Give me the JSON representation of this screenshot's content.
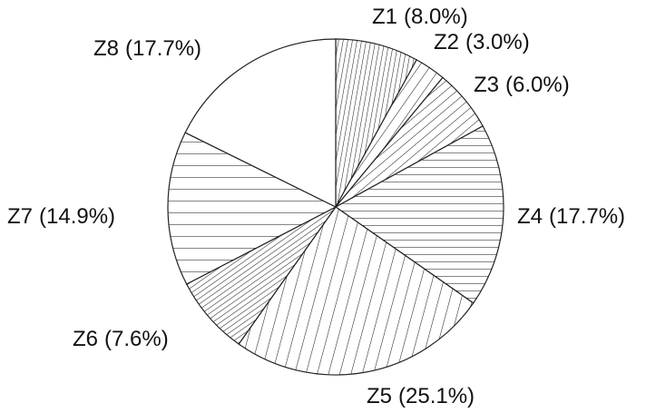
{
  "chart_data": {
    "type": "pie",
    "categories": [
      "Z1",
      "Z2",
      "Z3",
      "Z4",
      "Z5",
      "Z6",
      "Z7",
      "Z8"
    ],
    "values": [
      8.0,
      3.0,
      6.0,
      17.7,
      25.1,
      7.6,
      14.9,
      17.7
    ],
    "value_labels": [
      "(8.0%)",
      "(3.0%)",
      "(6.0%)",
      "(17.7%)",
      "(25.1%)",
      "(7.6%)",
      "(14.9%)",
      "(17.7%)"
    ]
  }
}
